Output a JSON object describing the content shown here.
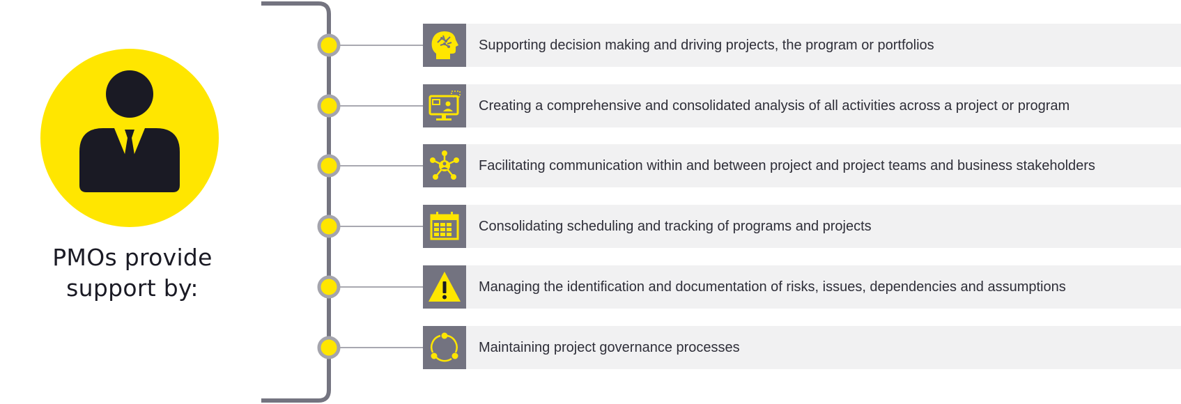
{
  "headline": {
    "line1": "PMOs provide",
    "line2": "support by:"
  },
  "colors": {
    "accent_yellow": "#ffe600",
    "dark": "#1a1a24",
    "icon_bg": "#737380",
    "row_bg": "#f1f1f2",
    "connector": "#8c8c96",
    "bracket": "#747480"
  },
  "items": [
    {
      "icon": "brain-head-icon",
      "text": "Supporting decision making and driving projects, the program or portfolios"
    },
    {
      "icon": "monitor-analysis-icon",
      "text": "Creating a comprehensive and consolidated analysis of all activities across a project or program"
    },
    {
      "icon": "network-people-icon",
      "text": "Facilitating communication within and between project and project teams and business stakeholders"
    },
    {
      "icon": "calendar-icon",
      "text": "Consolidating scheduling and tracking of programs and projects"
    },
    {
      "icon": "warning-triangle-icon",
      "text": "Managing the identification and documentation of risks, issues, dependencies and assumptions"
    },
    {
      "icon": "cycle-process-icon",
      "text": "Maintaining project governance processes"
    }
  ]
}
